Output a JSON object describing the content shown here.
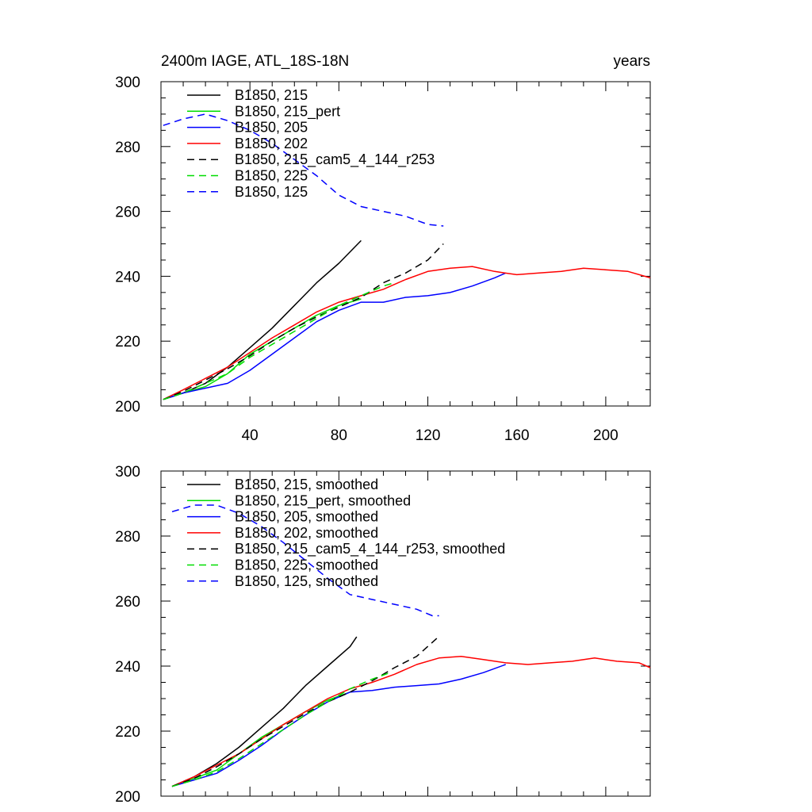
{
  "chart_data": [
    {
      "type": "line",
      "title_left": "2400m IAGE, ATL_18S-18N",
      "title_right": "years",
      "xlim": [
        0,
        220
      ],
      "ylim": [
        200,
        300
      ],
      "x_ticks": [
        40,
        80,
        120,
        160,
        200
      ],
      "x_tick_labels": [
        "40",
        "80",
        "120",
        "160",
        "200"
      ],
      "y_ticks": [
        200,
        220,
        240,
        260,
        280,
        300
      ],
      "y_tick_labels": [
        "200",
        "220",
        "240",
        "260",
        "280",
        "300"
      ],
      "legend_position": "top-left",
      "series": [
        {
          "name": "B1850, 215",
          "color": "#000000",
          "dash": "solid",
          "points": [
            [
              1,
              202
            ],
            [
              10,
              204
            ],
            [
              20,
              207
            ],
            [
              30,
              212
            ],
            [
              40,
              218
            ],
            [
              50,
              224
            ],
            [
              60,
              231
            ],
            [
              70,
              238
            ],
            [
              80,
              244
            ],
            [
              90,
              251
            ]
          ]
        },
        {
          "name": "B1850, 215_pert",
          "color": "#00dd00",
          "dash": "solid",
          "points": [
            [
              1,
              202
            ],
            [
              10,
              204
            ],
            [
              20,
              206
            ],
            [
              30,
              210
            ],
            [
              40,
              216
            ],
            [
              50,
              220
            ],
            [
              60,
              224
            ],
            [
              70,
              228
            ],
            [
              80,
              231
            ],
            [
              90,
              233
            ]
          ]
        },
        {
          "name": "B1850, 205",
          "color": "#0000ff",
          "dash": "solid",
          "points": [
            [
              1,
              202
            ],
            [
              10,
              204
            ],
            [
              20,
              205.5
            ],
            [
              30,
              207
            ],
            [
              40,
              211
            ],
            [
              50,
              216
            ],
            [
              60,
              221
            ],
            [
              70,
              226
            ],
            [
              80,
              229.5
            ],
            [
              90,
              232
            ],
            [
              100,
              232
            ],
            [
              110,
              233.5
            ],
            [
              120,
              234
            ],
            [
              130,
              235
            ],
            [
              140,
              237
            ],
            [
              150,
              239.5
            ],
            [
              155,
              241
            ]
          ]
        },
        {
          "name": "B1850, 202",
          "color": "#ff0000",
          "dash": "solid",
          "points": [
            [
              1,
              202
            ],
            [
              10,
              205
            ],
            [
              20,
              208.5
            ],
            [
              30,
              212
            ],
            [
              40,
              216.5
            ],
            [
              50,
              221
            ],
            [
              60,
              225
            ],
            [
              70,
              229
            ],
            [
              80,
              232
            ],
            [
              90,
              234
            ],
            [
              100,
              236
            ],
            [
              110,
              239
            ],
            [
              120,
              241.5
            ],
            [
              130,
              242.5
            ],
            [
              140,
              243
            ],
            [
              150,
              241.5
            ],
            [
              160,
              240.5
            ],
            [
              170,
              241
            ],
            [
              180,
              241.5
            ],
            [
              190,
              242.5
            ],
            [
              200,
              242
            ],
            [
              210,
              241.5
            ],
            [
              220,
              239.5
            ]
          ]
        },
        {
          "name": "B1850, 215_cam5_4_144_r253",
          "color": "#000000",
          "dash": "dashed",
          "points": [
            [
              1,
              202
            ],
            [
              10,
              204.5
            ],
            [
              20,
              208
            ],
            [
              30,
              211.5
            ],
            [
              40,
              215.5
            ],
            [
              50,
              220
            ],
            [
              60,
              224
            ],
            [
              70,
              227.5
            ],
            [
              80,
              230.5
            ],
            [
              90,
              233.5
            ],
            [
              100,
              238
            ],
            [
              110,
              241
            ],
            [
              120,
              245
            ],
            [
              127,
              250
            ]
          ]
        },
        {
          "name": "B1850, 225",
          "color": "#00dd00",
          "dash": "dashed",
          "points": [
            [
              1,
              202
            ],
            [
              10,
              204
            ],
            [
              20,
              207
            ],
            [
              30,
              210
            ],
            [
              40,
              215
            ],
            [
              50,
              219
            ],
            [
              60,
              223
            ],
            [
              70,
              227
            ],
            [
              80,
              231
            ],
            [
              90,
              234
            ],
            [
              100,
              237
            ],
            [
              105,
              238
            ]
          ]
        },
        {
          "name": "B1850, 125",
          "color": "#0000ff",
          "dash": "dashed",
          "points": [
            [
              1,
              286.5
            ],
            [
              10,
              288.5
            ],
            [
              20,
              290
            ],
            [
              30,
              288
            ],
            [
              40,
              285
            ],
            [
              50,
              281
            ],
            [
              60,
              276
            ],
            [
              70,
              271
            ],
            [
              80,
              265
            ],
            [
              90,
              261.5
            ],
            [
              100,
              260
            ],
            [
              110,
              258.5
            ],
            [
              120,
              256
            ],
            [
              127,
              255.5
            ]
          ]
        }
      ]
    },
    {
      "type": "line",
      "title_left": "",
      "title_right": "",
      "xlim": [
        0,
        220
      ],
      "ylim": [
        200,
        300
      ],
      "x_ticks": [
        40,
        80,
        120,
        160,
        200
      ],
      "x_tick_labels": [],
      "y_ticks": [
        200,
        220,
        240,
        260,
        280,
        300
      ],
      "y_tick_labels": [
        "200",
        "220",
        "240",
        "260",
        "280",
        "300"
      ],
      "legend_position": "top-left",
      "series": [
        {
          "name": "B1850, 215, smoothed",
          "color": "#000000",
          "dash": "solid",
          "points": [
            [
              5,
              203
            ],
            [
              15,
              206
            ],
            [
              25,
              210
            ],
            [
              35,
              215
            ],
            [
              45,
              221
            ],
            [
              55,
              227
            ],
            [
              65,
              234
            ],
            [
              75,
              240
            ],
            [
              85,
              246
            ],
            [
              88,
              249
            ]
          ]
        },
        {
          "name": "B1850, 215_pert, smoothed",
          "color": "#00dd00",
          "dash": "solid",
          "points": [
            [
              5,
              203
            ],
            [
              15,
              205.5
            ],
            [
              25,
              208
            ],
            [
              35,
              213
            ],
            [
              45,
              218
            ],
            [
              55,
              222
            ],
            [
              65,
              226
            ],
            [
              75,
              229.5
            ],
            [
              85,
              232
            ]
          ]
        },
        {
          "name": "B1850, 205, smoothed",
          "color": "#0000ff",
          "dash": "solid",
          "points": [
            [
              5,
              203
            ],
            [
              15,
              205
            ],
            [
              25,
              207
            ],
            [
              35,
              211
            ],
            [
              45,
              215.5
            ],
            [
              55,
              220.5
            ],
            [
              65,
              225
            ],
            [
              75,
              229
            ],
            [
              85,
              232
            ],
            [
              95,
              232.5
            ],
            [
              105,
              233.5
            ],
            [
              115,
              234
            ],
            [
              125,
              234.5
            ],
            [
              135,
              236
            ],
            [
              145,
              238
            ],
            [
              155,
              240.5
            ]
          ]
        },
        {
          "name": "B1850, 202, smoothed",
          "color": "#ff0000",
          "dash": "solid",
          "points": [
            [
              5,
              203
            ],
            [
              15,
              206
            ],
            [
              25,
              209.5
            ],
            [
              35,
              213
            ],
            [
              45,
              217.5
            ],
            [
              55,
              222
            ],
            [
              65,
              226
            ],
            [
              75,
              230
            ],
            [
              85,
              233
            ],
            [
              95,
              235
            ],
            [
              105,
              237.5
            ],
            [
              115,
              240.5
            ],
            [
              125,
              242.5
            ],
            [
              135,
              243
            ],
            [
              145,
              242
            ],
            [
              155,
              241
            ],
            [
              165,
              240.5
            ],
            [
              175,
              241
            ],
            [
              185,
              241.5
            ],
            [
              195,
              242.5
            ],
            [
              205,
              241.5
            ],
            [
              215,
              241
            ],
            [
              220,
              239.5
            ]
          ]
        },
        {
          "name": "B1850, 215_cam5_4_144_r253, smoothed",
          "color": "#000000",
          "dash": "dashed",
          "points": [
            [
              5,
              203
            ],
            [
              15,
              205.5
            ],
            [
              25,
              209
            ],
            [
              35,
              213
            ],
            [
              45,
              217.5
            ],
            [
              55,
              221.5
            ],
            [
              65,
              225.5
            ],
            [
              75,
              229
            ],
            [
              85,
              232
            ],
            [
              95,
              235.5
            ],
            [
              105,
              239.5
            ],
            [
              115,
              243
            ],
            [
              124,
              248.5
            ]
          ]
        },
        {
          "name": "B1850, 225, smoothed",
          "color": "#00dd00",
          "dash": "dashed",
          "points": [
            [
              5,
              203
            ],
            [
              15,
              205
            ],
            [
              25,
              207.5
            ],
            [
              35,
              211.5
            ],
            [
              45,
              216
            ],
            [
              55,
              220.5
            ],
            [
              65,
              225
            ],
            [
              75,
              229
            ],
            [
              85,
              233
            ],
            [
              95,
              236
            ],
            [
              103,
              238
            ]
          ]
        },
        {
          "name": "B1850, 125, smoothed",
          "color": "#0000ff",
          "dash": "dashed",
          "points": [
            [
              5,
              287.5
            ],
            [
              15,
              289.5
            ],
            [
              25,
              289.5
            ],
            [
              35,
              287
            ],
            [
              45,
              283
            ],
            [
              55,
              278
            ],
            [
              65,
              272.5
            ],
            [
              75,
              267
            ],
            [
              85,
              262
            ],
            [
              95,
              260.5
            ],
            [
              105,
              259
            ],
            [
              115,
              257.5
            ],
            [
              122,
              255.5
            ],
            [
              125,
              255.5
            ]
          ]
        }
      ]
    }
  ]
}
